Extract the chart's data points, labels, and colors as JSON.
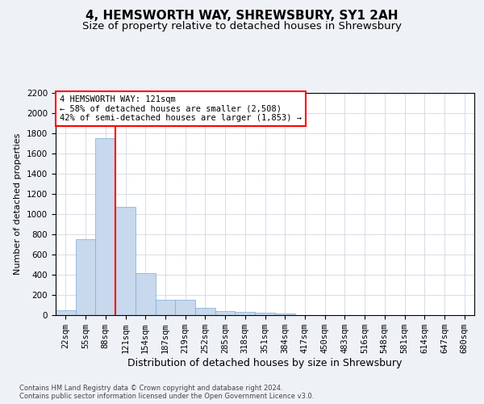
{
  "title": "4, HEMSWORTH WAY, SHREWSBURY, SY1 2AH",
  "subtitle": "Size of property relative to detached houses in Shrewsbury",
  "xlabel": "Distribution of detached houses by size in Shrewsbury",
  "ylabel": "Number of detached properties",
  "categories": [
    "22sqm",
    "55sqm",
    "88sqm",
    "121sqm",
    "154sqm",
    "187sqm",
    "219sqm",
    "252sqm",
    "285sqm",
    "318sqm",
    "351sqm",
    "384sqm",
    "417sqm",
    "450sqm",
    "483sqm",
    "516sqm",
    "548sqm",
    "581sqm",
    "614sqm",
    "647sqm",
    "680sqm"
  ],
  "values": [
    50,
    750,
    1750,
    1070,
    420,
    155,
    155,
    75,
    40,
    35,
    25,
    20,
    0,
    0,
    0,
    0,
    0,
    0,
    0,
    0,
    0
  ],
  "bar_color": "#c8d8ed",
  "bar_edge_color": "#7aadd4",
  "vline_color": "red",
  "vline_index": 2.5,
  "annotation_text": "4 HEMSWORTH WAY: 121sqm\n← 58% of detached houses are smaller (2,508)\n42% of semi-detached houses are larger (1,853) →",
  "annotation_box_color": "white",
  "annotation_box_edge_color": "red",
  "ylim": [
    0,
    2200
  ],
  "yticks": [
    0,
    200,
    400,
    600,
    800,
    1000,
    1200,
    1400,
    1600,
    1800,
    2000,
    2200
  ],
  "background_color": "#eef2f7",
  "plot_background": "white",
  "grid_color": "#c8d0dc",
  "footer": "Contains HM Land Registry data © Crown copyright and database right 2024.\nContains public sector information licensed under the Open Government Licence v3.0.",
  "title_fontsize": 11,
  "subtitle_fontsize": 9.5,
  "xlabel_fontsize": 9,
  "ylabel_fontsize": 8,
  "tick_fontsize": 7.5,
  "footer_fontsize": 6
}
